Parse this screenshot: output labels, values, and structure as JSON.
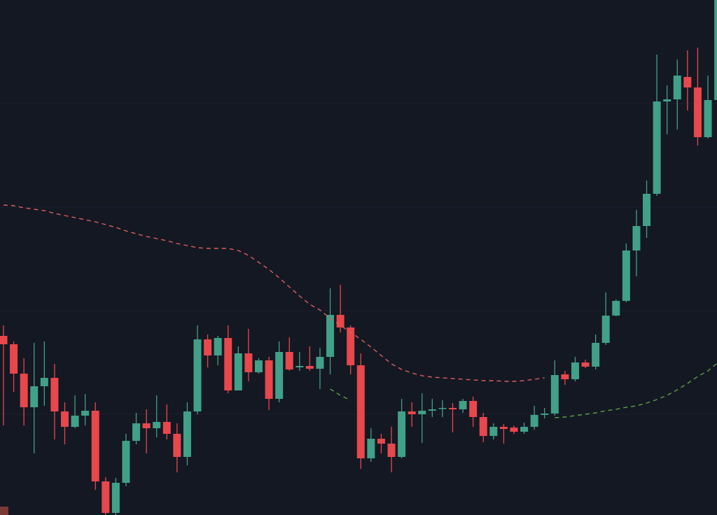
{
  "chart_data": {
    "type": "candlestick",
    "up_color": "#41a088",
    "down_color": "#e8474c",
    "ylim": [
      0,
      736
    ],
    "open": [
      256,
      244,
      202,
      154,
      184,
      196,
      148,
      126,
      142,
      149,
      48,
      3,
      46,
      106,
      131,
      124,
      133,
      116,
      83,
      148,
      251,
      228,
      253,
      178,
      231,
      204,
      221,
      166,
      233,
      211,
      213,
      209,
      226,
      286,
      268,
      214,
      81,
      109,
      102,
      83,
      148,
      144,
      149,
      152,
      153,
      151,
      163,
      140,
      113,
      126,
      125,
      119,
      126,
      143,
      145,
      201,
      194,
      218,
      212,
      246,
      285,
      306,
      378,
      413,
      459,
      591,
      594,
      626,
      611,
      540,
      593
    ],
    "high": [
      271,
      248,
      224,
      246,
      248,
      216,
      161,
      171,
      173,
      161,
      54,
      53,
      116,
      146,
      151,
      171,
      158,
      131,
      161,
      271,
      258,
      256,
      271,
      241,
      266,
      224,
      226,
      248,
      254,
      233,
      241,
      239,
      324,
      329,
      271,
      231,
      124,
      116,
      126,
      166,
      161,
      174,
      166,
      164,
      160,
      166,
      169,
      146,
      131,
      130,
      128,
      132,
      156,
      153,
      221,
      206,
      226,
      222,
      258,
      318,
      308,
      388,
      436,
      478,
      658,
      614,
      651,
      664,
      668,
      628,
      736
    ],
    "low": [
      128,
      176,
      128,
      88,
      156,
      108,
      101,
      124,
      128,
      36,
      0,
      0,
      41,
      101,
      88,
      111,
      108,
      61,
      71,
      144,
      211,
      214,
      174,
      178,
      191,
      202,
      150,
      161,
      206,
      206,
      206,
      180,
      201,
      261,
      201,
      66,
      76,
      88,
      61,
      81,
      126,
      103,
      140,
      140,
      118,
      146,
      126,
      104,
      108,
      102,
      116,
      116,
      122,
      138,
      142,
      186,
      191,
      210,
      208,
      243,
      284,
      304,
      341,
      396,
      456,
      544,
      551,
      578,
      528,
      538,
      590
    ],
    "close": [
      244,
      202,
      154,
      184,
      196,
      148,
      126,
      142,
      149,
      48,
      3,
      46,
      106,
      131,
      124,
      133,
      116,
      83,
      148,
      251,
      228,
      253,
      178,
      231,
      204,
      221,
      166,
      233,
      208,
      213,
      209,
      226,
      286,
      268,
      214,
      81,
      109,
      102,
      83,
      148,
      144,
      149,
      151,
      153,
      151,
      163,
      140,
      113,
      126,
      123,
      119,
      126,
      143,
      145,
      200,
      194,
      218,
      212,
      246,
      285,
      306,
      378,
      413,
      459,
      591,
      594,
      628,
      611,
      540,
      593,
      736
    ],
    "lines": [
      {
        "color": "#d9605a",
        "values": [
          443,
          442,
          439,
          437,
          435,
          431,
          428,
          425,
          422,
          419,
          415,
          411,
          406,
          402,
          398,
          395,
          392,
          388,
          385,
          382,
          381,
          381,
          381,
          378,
          371,
          361,
          351,
          339,
          326,
          313,
          301,
          293,
          281,
          271,
          261,
          251,
          240,
          228,
          216,
          208,
          203,
          199,
          197,
          196,
          195,
          194,
          193,
          192,
          192,
          191,
          191,
          192,
          194,
          196,
          null,
          null,
          null,
          null,
          null,
          null,
          null,
          null,
          null,
          null,
          null,
          null,
          null,
          null,
          null,
          null,
          null
        ]
      },
      {
        "color": "#5fa043",
        "values": [
          null,
          null,
          null,
          null,
          null,
          null,
          null,
          null,
          null,
          null,
          null,
          null,
          null,
          null,
          null,
          null,
          null,
          null,
          null,
          null,
          null,
          null,
          null,
          null,
          null,
          null,
          null,
          null,
          null,
          null,
          null,
          null,
          180,
          171,
          164,
          null,
          null,
          null,
          null,
          null,
          null,
          null,
          null,
          null,
          null,
          null,
          null,
          null,
          null,
          null,
          null,
          null,
          null,
          null,
          139,
          140,
          142,
          144,
          146,
          149,
          151,
          154,
          156,
          160,
          165,
          171,
          179,
          188,
          198,
          206,
          218
        ]
      }
    ]
  }
}
